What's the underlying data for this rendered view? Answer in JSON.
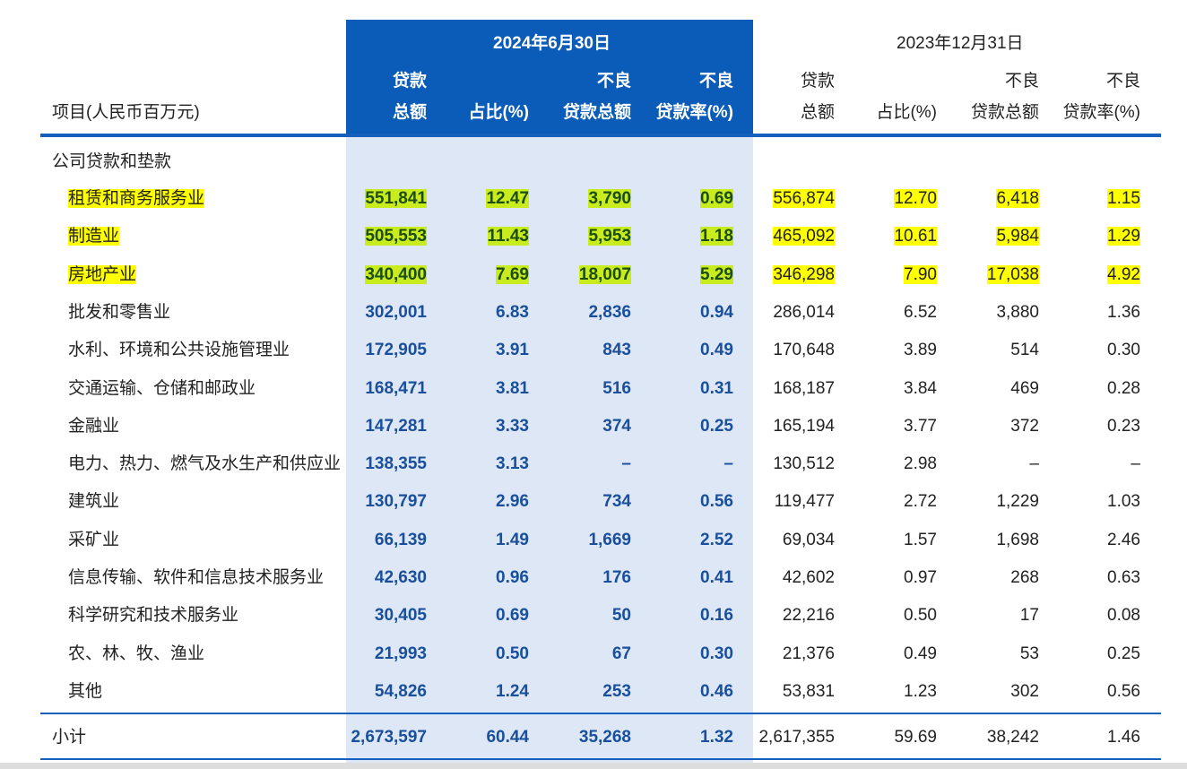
{
  "header": {
    "item_label": "项目(人民币百万元)",
    "period_current": "2024年6月30日",
    "period_prior": "2023年12月31日",
    "columns": [
      [
        "贷款",
        "总额"
      ],
      [
        "",
        "占比(%)"
      ],
      [
        "不良",
        "贷款总额"
      ],
      [
        "不良",
        "贷款率(%)"
      ]
    ]
  },
  "section_title": "公司贷款和垫款",
  "rows": [
    {
      "name": "租赁和商务服务业",
      "cur": [
        "551,841",
        "12.47",
        "3,790",
        "0.69"
      ],
      "prev": [
        "556,874",
        "12.70",
        "6,418",
        "1.15"
      ],
      "highlight": true
    },
    {
      "name": "制造业",
      "cur": [
        "505,553",
        "11.43",
        "5,953",
        "1.18"
      ],
      "prev": [
        "465,092",
        "10.61",
        "5,984",
        "1.29"
      ],
      "highlight": true
    },
    {
      "name": "房地产业",
      "cur": [
        "340,400",
        "7.69",
        "18,007",
        "5.29"
      ],
      "prev": [
        "346,298",
        "7.90",
        "17,038",
        "4.92"
      ],
      "highlight": true
    },
    {
      "name": "批发和零售业",
      "cur": [
        "302,001",
        "6.83",
        "2,836",
        "0.94"
      ],
      "prev": [
        "286,014",
        "6.52",
        "3,880",
        "1.36"
      ]
    },
    {
      "name": "水利、环境和公共设施管理业",
      "cur": [
        "172,905",
        "3.91",
        "843",
        "0.49"
      ],
      "prev": [
        "170,648",
        "3.89",
        "514",
        "0.30"
      ]
    },
    {
      "name": "交通运输、仓储和邮政业",
      "cur": [
        "168,471",
        "3.81",
        "516",
        "0.31"
      ],
      "prev": [
        "168,187",
        "3.84",
        "469",
        "0.28"
      ]
    },
    {
      "name": "金融业",
      "cur": [
        "147,281",
        "3.33",
        "374",
        "0.25"
      ],
      "prev": [
        "165,194",
        "3.77",
        "372",
        "0.23"
      ]
    },
    {
      "name": "电力、热力、燃气及水生产和供应业",
      "cur": [
        "138,355",
        "3.13",
        "–",
        "–"
      ],
      "prev": [
        "130,512",
        "2.98",
        "–",
        "–"
      ]
    },
    {
      "name": "建筑业",
      "cur": [
        "130,797",
        "2.96",
        "734",
        "0.56"
      ],
      "prev": [
        "119,477",
        "2.72",
        "1,229",
        "1.03"
      ]
    },
    {
      "name": "采矿业",
      "cur": [
        "66,139",
        "1.49",
        "1,669",
        "2.52"
      ],
      "prev": [
        "69,034",
        "1.57",
        "1,698",
        "2.46"
      ]
    },
    {
      "name": "信息传输、软件和信息技术服务业",
      "cur": [
        "42,630",
        "0.96",
        "176",
        "0.41"
      ],
      "prev": [
        "42,602",
        "0.97",
        "268",
        "0.63"
      ]
    },
    {
      "name": "科学研究和技术服务业",
      "cur": [
        "30,405",
        "0.69",
        "50",
        "0.16"
      ],
      "prev": [
        "22,216",
        "0.50",
        "17",
        "0.08"
      ]
    },
    {
      "name": "农、林、牧、渔业",
      "cur": [
        "21,993",
        "0.50",
        "67",
        "0.30"
      ],
      "prev": [
        "21,376",
        "0.49",
        "53",
        "0.25"
      ]
    },
    {
      "name": "其他",
      "cur": [
        "54,826",
        "1.24",
        "253",
        "0.46"
      ],
      "prev": [
        "53,831",
        "1.23",
        "302",
        "0.56"
      ]
    }
  ],
  "subtotal": {
    "name": "小计",
    "cur": [
      "2,673,597",
      "60.44",
      "35,268",
      "1.32"
    ],
    "prev": [
      "2,617,355",
      "59.69",
      "38,242",
      "1.46"
    ]
  },
  "colors": {
    "header_blue": "#0a5cb8",
    "column_tint": "#dde7f5",
    "highlight": "#ffff00"
  }
}
